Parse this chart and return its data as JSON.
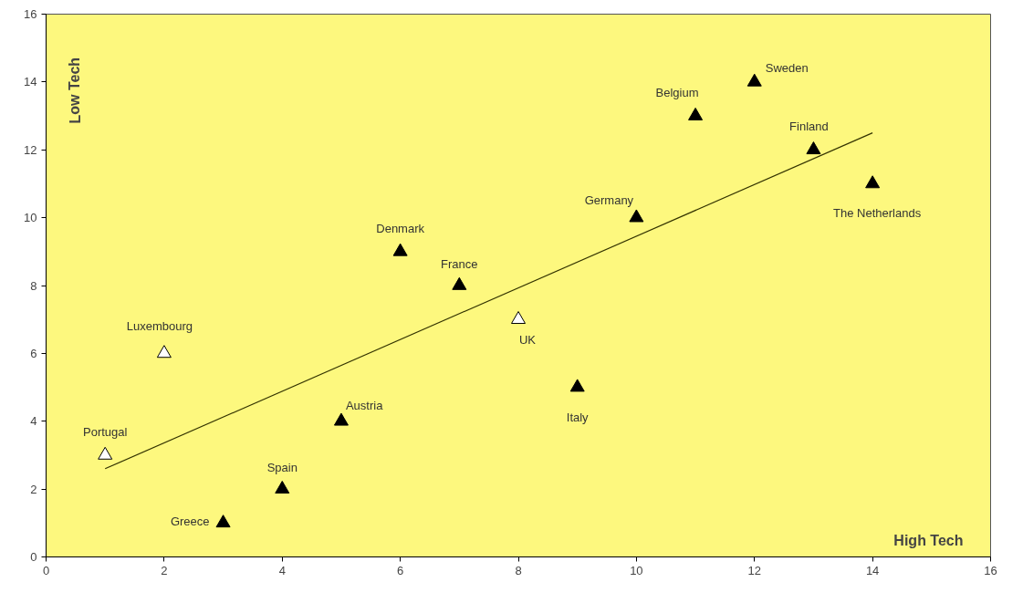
{
  "chart_data": {
    "type": "scatter",
    "xlabel": "High Tech",
    "ylabel": "Low Tech",
    "xlim": [
      0,
      16
    ],
    "ylim": [
      0,
      16
    ],
    "xticks": [
      0,
      2,
      4,
      6,
      8,
      10,
      12,
      14,
      16
    ],
    "yticks": [
      0,
      2,
      4,
      6,
      8,
      10,
      12,
      14,
      16
    ],
    "grid": false,
    "marker": "triangle",
    "series": [
      {
        "color": "#000000",
        "x": [
          3,
          4,
          5,
          6,
          7,
          9,
          10,
          11,
          12,
          13,
          14
        ],
        "values": [
          1,
          2,
          4,
          9,
          8,
          5,
          10,
          13,
          14,
          12,
          11
        ]
      },
      {
        "color": "#ffffff",
        "x": [
          1,
          2,
          8
        ],
        "values": [
          3,
          6,
          7
        ]
      },
      {
        "type": "line",
        "color": "#333300",
        "marker": "none",
        "x": [
          1,
          14
        ],
        "values": [
          2.6,
          12.5
        ]
      }
    ],
    "annotations": [
      {
        "text": "Portugal",
        "x": 1,
        "y": 3
      },
      {
        "text": "Luxembourg",
        "x": 2,
        "y": 6
      },
      {
        "text": "Greece",
        "x": 3,
        "y": 1
      },
      {
        "text": "Spain",
        "x": 4,
        "y": 2
      },
      {
        "text": "Austria",
        "x": 5,
        "y": 4
      },
      {
        "text": "Denmark",
        "x": 6,
        "y": 9
      },
      {
        "text": "France",
        "x": 7,
        "y": 8
      },
      {
        "text": "UK",
        "x": 8,
        "y": 7
      },
      {
        "text": "Italy",
        "x": 9,
        "y": 5
      },
      {
        "text": "Germany",
        "x": 10,
        "y": 10
      },
      {
        "text": "Belgium",
        "x": 11,
        "y": 13
      },
      {
        "text": "Sweden",
        "x": 12,
        "y": 14
      },
      {
        "text": "Finland",
        "x": 13,
        "y": 12
      },
      {
        "text": "The Netherlands",
        "x": 14,
        "y": 11
      }
    ]
  }
}
